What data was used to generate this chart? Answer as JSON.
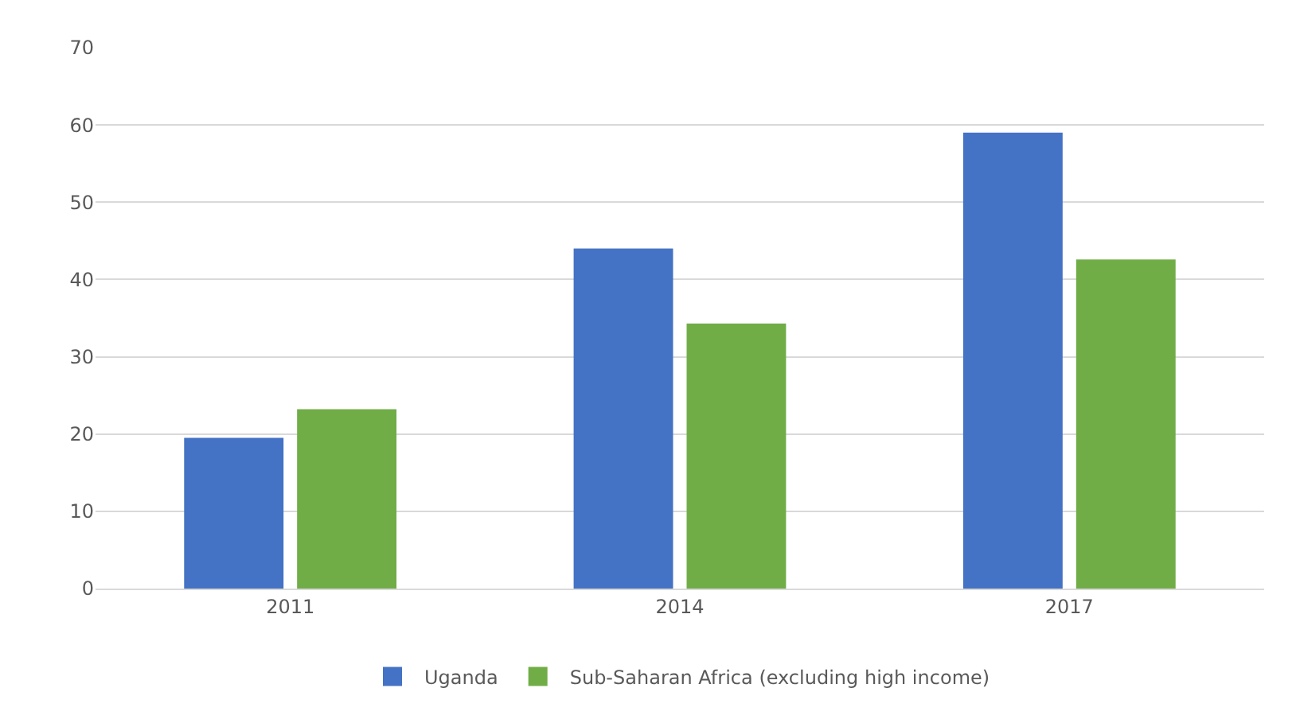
{
  "chart_data": {
    "type": "bar",
    "categories": [
      "2011",
      "2014",
      "2017"
    ],
    "series": [
      {
        "name": "Uganda",
        "color": "#4472c4",
        "values": [
          19.5,
          44,
          59
        ]
      },
      {
        "name": "Sub-Saharan Africa (excluding high income)",
        "color": "#70ad47",
        "values": [
          23.2,
          34.3,
          42.6
        ]
      }
    ],
    "ylim": [
      0,
      70
    ],
    "yticks": [
      0,
      10,
      20,
      30,
      40,
      50,
      60,
      70
    ],
    "grid": "y",
    "legend": "bottom"
  }
}
